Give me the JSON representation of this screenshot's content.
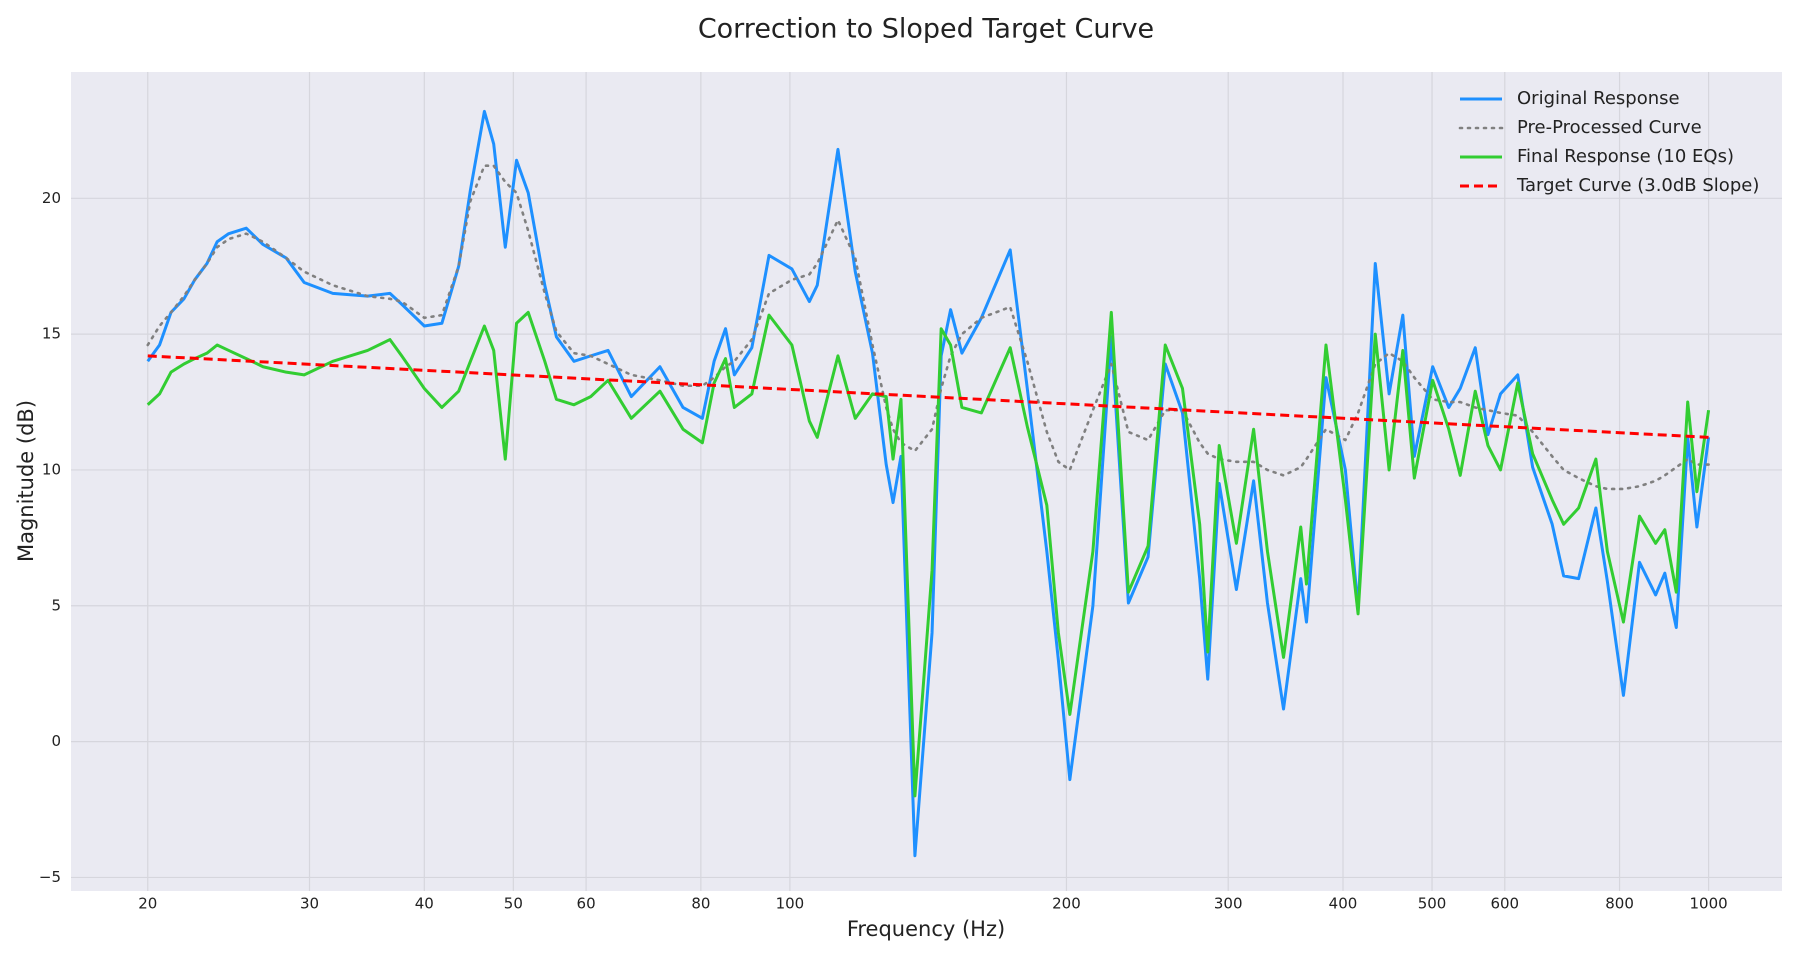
{
  "chart_data": {
    "type": "line",
    "title": "Correction to Sloped Target Curve",
    "x_label": "Frequency (Hz)",
    "y_label": "Magnitude (dB)",
    "xscale": "log",
    "grid": true,
    "legend": "upper right",
    "xlim": [
      16.5,
      1202
    ],
    "ylim": [
      -5.5,
      24.65
    ],
    "xticks": [
      20,
      30,
      40,
      50,
      60,
      80,
      100,
      200,
      300,
      400,
      500,
      600,
      800,
      1000
    ],
    "yticks": [
      {
        "value": -5,
        "label": "−5"
      },
      0,
      5,
      10,
      15,
      20
    ],
    "x": [
      20,
      20.6,
      21.2,
      21.9,
      22.5,
      23.2,
      23.8,
      24.5,
      25.6,
      26.7,
      28.3,
      29.6,
      31.8,
      34.7,
      36.7,
      37.8,
      40.0,
      41.8,
      43.6,
      44.9,
      46.5,
      47.6,
      49.0,
      50.4,
      51.9,
      54.1,
      55.7,
      58.2,
      60.7,
      63.4,
      67.2,
      72.2,
      76.5,
      80.3,
      82.7,
      85.1,
      87.0,
      90.9,
      94.9,
      100.5,
      105.0,
      107.1,
      112.8,
      117.8,
      123.0,
      127.3,
      129.5,
      132.1,
      136.8,
      142.8,
      146.1,
      149.6,
      153.9,
      161.6,
      173.7,
      181.3,
      190.4,
      196.0,
      201.7,
      213.7,
      223.8,
      233.6,
      245.4,
      256.2,
      267.5,
      279.3,
      285.0,
      293.3,
      306.2,
      319.7,
      331.0,
      344.6,
      359.8,
      365.0,
      383.3,
      402.4,
      415.4,
      433.7,
      449.0,
      464.7,
      478.3,
      500.8,
      521.4,
      536.6,
      557.2,
      575.2,
      593.6,
      619.8,
      643.4,
      675.7,
      695.4,
      722.0,
      753.9,
      775.9,
      807.8,
      841.0,
      875.7,
      896.1,
      922.2,
      949.0,
      971.1,
      1000
    ],
    "series": [
      {
        "name": "Original Response",
        "color": "#1e90ff",
        "style": "solid",
        "values": [
          14.0,
          14.6,
          15.8,
          16.3,
          17.0,
          17.6,
          18.4,
          18.7,
          18.9,
          18.3,
          17.8,
          16.9,
          16.5,
          16.4,
          16.5,
          16.1,
          15.3,
          15.4,
          17.5,
          20.3,
          23.2,
          22.0,
          18.2,
          21.4,
          20.2,
          16.8,
          14.9,
          14.0,
          14.2,
          14.4,
          12.7,
          13.8,
          12.3,
          11.9,
          14.0,
          15.2,
          13.5,
          14.5,
          17.9,
          17.4,
          16.2,
          16.8,
          21.8,
          17.3,
          14.3,
          10.2,
          8.8,
          10.5,
          -4.2,
          4.0,
          14.2,
          15.9,
          14.3,
          15.6,
          18.1,
          13.0,
          7.0,
          3.0,
          -1.4,
          5.0,
          14.9,
          5.1,
          6.8,
          13.9,
          12.1,
          6.0,
          2.3,
          9.5,
          5.6,
          9.6,
          5.1,
          1.2,
          6.0,
          4.4,
          13.4,
          10.0,
          4.9,
          17.6,
          12.8,
          15.7,
          10.5,
          13.8,
          12.3,
          13.0,
          14.5,
          11.3,
          12.8,
          13.5,
          10.1,
          8.0,
          6.1,
          6.0,
          8.6,
          5.9,
          1.7,
          6.6,
          5.4,
          6.2,
          4.2,
          11.2,
          7.9,
          11.2
        ]
      },
      {
        "name": "Pre-Processed Curve",
        "color": "#808080",
        "style": "dotted",
        "values": [
          14.6,
          15.3,
          15.8,
          16.4,
          17.0,
          17.6,
          18.2,
          18.5,
          18.7,
          18.4,
          17.8,
          17.3,
          16.8,
          16.4,
          16.3,
          16.2,
          15.6,
          15.7,
          17.5,
          19.9,
          21.2,
          21.2,
          20.6,
          20.2,
          18.8,
          16.5,
          15.1,
          14.3,
          14.2,
          13.9,
          13.5,
          13.3,
          13.1,
          13.1,
          13.4,
          13.8,
          14.0,
          14.8,
          16.5,
          17.0,
          17.2,
          17.6,
          19.2,
          17.8,
          14.6,
          12.3,
          11.5,
          11.0,
          10.7,
          11.5,
          13.0,
          14.2,
          15.0,
          15.6,
          16.0,
          14.0,
          11.4,
          10.3,
          10.0,
          12.2,
          13.9,
          11.4,
          11.1,
          12.2,
          12.2,
          11.0,
          10.6,
          10.4,
          10.3,
          10.3,
          10.0,
          9.8,
          10.1,
          10.4,
          11.5,
          11.1,
          12.1,
          13.9,
          14.3,
          14.0,
          13.4,
          12.6,
          12.5,
          12.5,
          12.3,
          12.2,
          12.1,
          12.0,
          11.4,
          10.5,
          10.0,
          9.7,
          9.4,
          9.3,
          9.3,
          9.4,
          9.6,
          9.8,
          10.1,
          10.4,
          10.2,
          10.2
        ]
      },
      {
        "name": "Final Response (10 EQs)",
        "color": "#32cd32",
        "style": "solid",
        "values": [
          12.4,
          12.8,
          13.6,
          13.9,
          14.1,
          14.3,
          14.6,
          14.4,
          14.1,
          13.8,
          13.6,
          13.5,
          14.0,
          14.4,
          14.8,
          14.2,
          13.0,
          12.3,
          12.9,
          14.0,
          15.3,
          14.4,
          10.4,
          15.4,
          15.8,
          14.0,
          12.6,
          12.4,
          12.7,
          13.3,
          11.9,
          12.9,
          11.5,
          11.0,
          13.2,
          14.1,
          12.3,
          12.8,
          15.7,
          14.6,
          11.8,
          11.2,
          14.2,
          11.9,
          12.8,
          12.7,
          10.4,
          12.6,
          -2.0,
          6.3,
          15.2,
          14.6,
          12.3,
          12.1,
          14.5,
          11.6,
          8.7,
          4.0,
          1.0,
          7.0,
          15.8,
          5.5,
          7.2,
          14.6,
          13.0,
          8.0,
          3.3,
          10.9,
          7.3,
          11.5,
          7.0,
          3.1,
          7.9,
          5.8,
          14.6,
          8.9,
          4.7,
          15.0,
          10.0,
          14.4,
          9.7,
          13.3,
          11.5,
          9.8,
          12.9,
          10.9,
          10.0,
          13.2,
          10.6,
          8.9,
          8.0,
          8.6,
          10.4,
          7.0,
          4.4,
          8.3,
          7.3,
          7.8,
          5.5,
          12.5,
          9.2,
          12.2
        ]
      },
      {
        "name": "Target Curve (3.0dB Slope)",
        "color": "#ff0000",
        "style": "dashed",
        "x": [
          20,
          1000
        ],
        "values": [
          14.2,
          11.2
        ]
      }
    ]
  }
}
